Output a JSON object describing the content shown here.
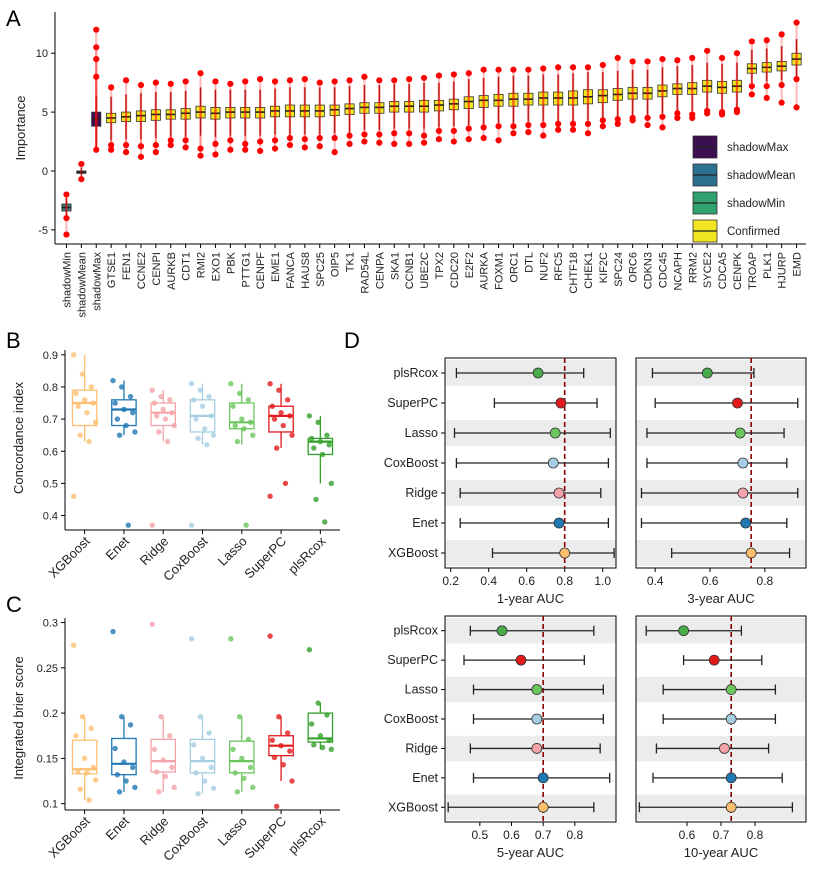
{
  "panels": {
    "A": {
      "letter": "A",
      "ylabel": "Importance",
      "yticks": [
        -5,
        0,
        5,
        10
      ],
      "ylim": [
        -6.2,
        13.5
      ],
      "legend": [
        {
          "label": "shadowMax",
          "color": "#3b0f52"
        },
        {
          "label": "shadowMean",
          "color": "#2c6f8e"
        },
        {
          "label": "shadowMin",
          "color": "#31a26f"
        },
        {
          "label": "Confirmed",
          "color": "#f2e521"
        }
      ]
    },
    "B": {
      "letter": "B",
      "ylabel": "Concordance index",
      "yticks": [
        0.4,
        0.5,
        0.6,
        0.7,
        0.8,
        0.9
      ],
      "ylim": [
        0.355,
        0.915
      ]
    },
    "C": {
      "letter": "C",
      "ylabel": "Integrated brier score",
      "yticks": [
        0.1,
        0.15,
        0.2,
        0.25,
        0.3
      ],
      "ylim": [
        0.093,
        0.305
      ]
    },
    "D": {
      "letter": "D"
    }
  },
  "chart_data": [
    {
      "id": "A",
      "type": "box",
      "title": "",
      "xlabel": "",
      "ylabel": "Importance",
      "categories": [
        "shadowMin",
        "shadowMean",
        "shadowMax",
        "GTSE1",
        "FEN1",
        "CCNE2",
        "CENPI",
        "AURKB",
        "CDT1",
        "RMI2",
        "EXO1",
        "PBK",
        "PTTG1",
        "CENPF",
        "EME1",
        "FANCA",
        "HAUS8",
        "SPC25",
        "OIP5",
        "TK1",
        "RAD54L",
        "CENPA",
        "SKA1",
        "CCNB1",
        "UBE2C",
        "TPX2",
        "CDC20",
        "E2F2",
        "AURKA",
        "FOXM1",
        "ORC1",
        "DTL",
        "NUF2",
        "RFC5",
        "CHTF18",
        "CHEK1",
        "KIF2C",
        "SPC24",
        "ORC6",
        "CDKN3",
        "CDC45",
        "NCAPH",
        "RRM2",
        "SYCE2",
        "CDCA5",
        "CENPK",
        "TROAP",
        "PLK1",
        "HJURP",
        "EMD"
      ],
      "medians": [
        -3.1,
        -0.1,
        4.4,
        4.5,
        4.6,
        4.7,
        4.8,
        4.8,
        4.9,
        5.0,
        4.9,
        5.0,
        5.0,
        5.0,
        5.1,
        5.1,
        5.1,
        5.1,
        5.2,
        5.3,
        5.4,
        5.4,
        5.5,
        5.5,
        5.5,
        5.6,
        5.7,
        5.9,
        6.0,
        6.0,
        6.1,
        6.1,
        6.2,
        6.2,
        6.2,
        6.3,
        6.4,
        6.5,
        6.6,
        6.6,
        6.8,
        7.0,
        7.0,
        7.2,
        7.1,
        7.2,
        8.7,
        8.8,
        8.9,
        9.5
      ],
      "q1": [
        -3.4,
        -0.2,
        3.8,
        4.1,
        4.2,
        4.2,
        4.3,
        4.4,
        4.4,
        4.5,
        4.4,
        4.5,
        4.5,
        4.5,
        4.6,
        4.6,
        4.6,
        4.6,
        4.7,
        4.8,
        4.9,
        4.9,
        5.0,
        5.0,
        5.0,
        5.1,
        5.2,
        5.3,
        5.4,
        5.5,
        5.5,
        5.6,
        5.6,
        5.6,
        5.6,
        5.7,
        5.8,
        6.0,
        6.1,
        6.1,
        6.3,
        6.5,
        6.5,
        6.7,
        6.6,
        6.7,
        8.3,
        8.4,
        8.5,
        9.0
      ],
      "q3": [
        -2.8,
        0.0,
        5.0,
        4.9,
        5.0,
        5.1,
        5.2,
        5.2,
        5.3,
        5.5,
        5.4,
        5.4,
        5.4,
        5.4,
        5.5,
        5.6,
        5.6,
        5.6,
        5.6,
        5.7,
        5.8,
        5.8,
        5.9,
        5.9,
        6.0,
        6.0,
        6.1,
        6.3,
        6.4,
        6.5,
        6.6,
        6.6,
        6.7,
        6.7,
        6.8,
        6.9,
        6.9,
        7.0,
        7.1,
        7.1,
        7.3,
        7.4,
        7.5,
        7.7,
        7.6,
        7.7,
        9.1,
        9.2,
        9.3,
        10.0
      ],
      "wmin": [
        -3.9,
        -0.4,
        2.0,
        2.6,
        2.7,
        2.7,
        2.8,
        2.9,
        2.9,
        3.0,
        2.9,
        3.0,
        3.0,
        3.0,
        3.1,
        3.1,
        3.1,
        3.1,
        3.2,
        3.3,
        3.5,
        3.5,
        3.6,
        3.6,
        3.6,
        3.7,
        3.8,
        3.9,
        4.0,
        4.1,
        4.1,
        4.2,
        4.2,
        4.2,
        4.2,
        4.3,
        4.4,
        4.6,
        4.7,
        4.7,
        4.9,
        5.1,
        5.1,
        5.3,
        5.2,
        5.3,
        7.5,
        7.6,
        7.7,
        8.0
      ],
      "wmax": [
        -2.3,
        0.3,
        6.4,
        6.3,
        6.5,
        6.6,
        6.7,
        6.7,
        6.8,
        7.1,
        6.9,
        6.9,
        6.9,
        6.9,
        7.0,
        7.1,
        7.1,
        7.1,
        7.1,
        7.2,
        7.3,
        7.3,
        7.4,
        7.4,
        7.5,
        7.5,
        7.6,
        7.8,
        7.9,
        8.0,
        8.1,
        8.1,
        8.2,
        8.2,
        8.3,
        8.4,
        8.4,
        8.5,
        8.6,
        8.6,
        8.8,
        8.9,
        9.0,
        9.2,
        9.1,
        9.2,
        10.3,
        10.4,
        10.6,
        11.2
      ],
      "out_lo": [
        [
          -4.0,
          -5.4
        ],
        [
          -0.7
        ],
        [
          1.8
        ],
        [
          1.8,
          2.2
        ],
        [
          1.6,
          2.2
        ],
        [
          1.2,
          2.1
        ],
        [
          1.6,
          2.2
        ],
        [
          2.2,
          2.6
        ],
        [
          2.0,
          2.6
        ],
        [
          1.3,
          1.9
        ],
        [
          1.4,
          2.3
        ],
        [
          1.8,
          2.6
        ],
        [
          1.8,
          2.3
        ],
        [
          1.7,
          2.5
        ],
        [
          1.9,
          2.6
        ],
        [
          2.2,
          2.8
        ],
        [
          2.0,
          2.7
        ],
        [
          2.1,
          2.8
        ],
        [
          1.6,
          2.8
        ],
        [
          2.3,
          3.0
        ],
        [
          2.5,
          3.1
        ],
        [
          2.4,
          3.1
        ],
        [
          2.3,
          3.2
        ],
        [
          2.3,
          3.2
        ],
        [
          2.4,
          3.0
        ],
        [
          2.7,
          3.4
        ],
        [
          2.5,
          3.4
        ],
        [
          2.7,
          3.6
        ],
        [
          2.8,
          3.7
        ],
        [
          2.6,
          3.8
        ],
        [
          3.2,
          3.8
        ],
        [
          3.3,
          3.9
        ],
        [
          3.0,
          3.9
        ],
        [
          3.5,
          4.0
        ],
        [
          3.5,
          4.0
        ],
        [
          3.2,
          4.0
        ],
        [
          3.8,
          4.3
        ],
        [
          4.0,
          4.4
        ],
        [
          4.3,
          4.5
        ],
        [
          3.9,
          4.5
        ],
        [
          3.7,
          4.6
        ],
        [
          4.5,
          4.9
        ],
        [
          4.5,
          4.8
        ],
        [
          4.9,
          5.1
        ],
        [
          4.8,
          5.0
        ],
        [
          5.0,
          5.2
        ],
        [
          6.5,
          7.2
        ],
        [
          6.2,
          7.2
        ],
        [
          5.8,
          7.3
        ],
        [
          5.4,
          7.8
        ]
      ],
      "out_hi": [
        [
          -2.0
        ],
        [
          0.6
        ],
        [
          12.0,
          10.5,
          9.5,
          8.0
        ],
        [
          7.1
        ],
        [
          7.7
        ],
        [
          7.3
        ],
        [
          7.5
        ],
        [
          7.4
        ],
        [
          7.6
        ],
        [
          8.3
        ],
        [
          7.6
        ],
        [
          7.4
        ],
        [
          7.6
        ],
        [
          7.8
        ],
        [
          7.6
        ],
        [
          7.7
        ],
        [
          7.8
        ],
        [
          7.5
        ],
        [
          7.6
        ],
        [
          7.7
        ],
        [
          8.0
        ],
        [
          7.7
        ],
        [
          7.7
        ],
        [
          7.8
        ],
        [
          7.9
        ],
        [
          8.1
        ],
        [
          8.2
        ],
        [
          8.3
        ],
        [
          8.6
        ],
        [
          8.6
        ],
        [
          8.6
        ],
        [
          8.6
        ],
        [
          8.7
        ],
        [
          8.8
        ],
        [
          8.8
        ],
        [
          8.8
        ],
        [
          9.0
        ],
        [
          9.6
        ],
        [
          9.3
        ],
        [
          9.3
        ],
        [
          9.5
        ],
        [
          9.4
        ],
        [
          9.6
        ],
        [
          10.2
        ],
        [
          9.6
        ],
        [
          10.0
        ],
        [
          11.0
        ],
        [
          11.1
        ],
        [
          11.6
        ],
        [
          12.6
        ]
      ]
    },
    {
      "id": "B",
      "type": "box",
      "title": "",
      "ylabel": "Concordance index",
      "categories": [
        "XGBoost",
        "Enet",
        "Ridge",
        "CoxBoost",
        "Lasso",
        "SuperPC",
        "plsRcox"
      ],
      "colors": [
        "#fdbf6f",
        "#1f78b4",
        "#f4a4a8",
        "#a6cee3",
        "#6cc65e",
        "#e31a1c",
        "#33a02c"
      ],
      "medians": [
        0.75,
        0.73,
        0.72,
        0.71,
        0.69,
        0.71,
        0.63
      ],
      "q1": [
        0.68,
        0.68,
        0.68,
        0.66,
        0.67,
        0.66,
        0.59
      ],
      "q3": [
        0.79,
        0.76,
        0.75,
        0.76,
        0.75,
        0.74,
        0.64
      ],
      "wmin": [
        0.63,
        0.65,
        0.63,
        0.62,
        0.62,
        0.61,
        0.5
      ],
      "wmax": [
        0.9,
        0.82,
        0.79,
        0.81,
        0.81,
        0.81,
        0.71
      ],
      "points": [
        [
          0.9,
          0.84,
          0.8,
          0.78,
          0.76,
          0.75,
          0.74,
          0.72,
          0.69,
          0.65,
          0.63,
          0.46
        ],
        [
          0.82,
          0.8,
          0.77,
          0.75,
          0.73,
          0.72,
          0.7,
          0.68,
          0.66,
          0.65,
          0.37
        ],
        [
          0.79,
          0.77,
          0.76,
          0.75,
          0.73,
          0.72,
          0.71,
          0.7,
          0.68,
          0.66,
          0.63,
          0.37
        ],
        [
          0.81,
          0.79,
          0.77,
          0.76,
          0.74,
          0.71,
          0.7,
          0.67,
          0.65,
          0.64,
          0.62,
          0.37
        ],
        [
          0.81,
          0.78,
          0.76,
          0.74,
          0.7,
          0.69,
          0.68,
          0.67,
          0.65,
          0.63,
          0.37
        ],
        [
          0.81,
          0.79,
          0.76,
          0.74,
          0.72,
          0.71,
          0.7,
          0.68,
          0.65,
          0.61,
          0.5,
          0.46
        ],
        [
          0.71,
          0.69,
          0.65,
          0.64,
          0.63,
          0.62,
          0.61,
          0.59,
          0.5,
          0.45,
          0.38
        ]
      ]
    },
    {
      "id": "C",
      "type": "box",
      "title": "",
      "ylabel": "Integrated brier score",
      "categories": [
        "XGBoost",
        "Enet",
        "Ridge",
        "CoxBoost",
        "Lasso",
        "SuperPC",
        "plsRcox"
      ],
      "colors": [
        "#fdbf6f",
        "#1f78b4",
        "#f4a4a8",
        "#a6cee3",
        "#6cc65e",
        "#e31a1c",
        "#33a02c"
      ],
      "medians": [
        0.138,
        0.144,
        0.147,
        0.147,
        0.147,
        0.164,
        0.172
      ],
      "q1": [
        0.133,
        0.132,
        0.135,
        0.134,
        0.134,
        0.153,
        0.168
      ],
      "q3": [
        0.17,
        0.172,
        0.171,
        0.171,
        0.169,
        0.175,
        0.2
      ],
      "wmin": [
        0.104,
        0.113,
        0.113,
        0.111,
        0.113,
        0.125,
        0.16
      ],
      "wmax": [
        0.196,
        0.196,
        0.196,
        0.196,
        0.196,
        0.196,
        0.211
      ],
      "points": [
        [
          0.275,
          0.196,
          0.183,
          0.175,
          0.15,
          0.14,
          0.136,
          0.134,
          0.126,
          0.116,
          0.104
        ],
        [
          0.29,
          0.196,
          0.187,
          0.161,
          0.146,
          0.14,
          0.132,
          0.125,
          0.118,
          0.113
        ],
        [
          0.298,
          0.196,
          0.175,
          0.16,
          0.148,
          0.14,
          0.135,
          0.13,
          0.118,
          0.113
        ],
        [
          0.282,
          0.196,
          0.178,
          0.165,
          0.15,
          0.14,
          0.134,
          0.125,
          0.117,
          0.111
        ],
        [
          0.282,
          0.196,
          0.171,
          0.16,
          0.15,
          0.14,
          0.134,
          0.128,
          0.118,
          0.113
        ],
        [
          0.285,
          0.196,
          0.178,
          0.17,
          0.164,
          0.158,
          0.151,
          0.143,
          0.125,
          0.097
        ],
        [
          0.27,
          0.211,
          0.198,
          0.188,
          0.175,
          0.17,
          0.165,
          0.162,
          0.16
        ]
      ]
    },
    {
      "id": "D",
      "type": "forest",
      "models": [
        "plsRcox",
        "SuperPC",
        "Lasso",
        "CoxBoost",
        "Ridge",
        "Enet",
        "XGBoost"
      ],
      "colors": [
        "#4aab4a",
        "#e31a1c",
        "#6cc65e",
        "#a6cee3",
        "#f4a4a8",
        "#1f78b4",
        "#fdbf6f"
      ],
      "subplots": [
        {
          "xlabel": "1-year AUC",
          "xticks": [
            0.2,
            0.4,
            0.6,
            0.8,
            1.0
          ],
          "xticklabels": [
            "0.2",
            "0.4",
            "0.6",
            "0.8",
            "1.0"
          ],
          "xlim": [
            0.17,
            1.07
          ],
          "ref": 0.8,
          "est": [
            0.66,
            0.78,
            0.75,
            0.74,
            0.77,
            0.77,
            0.8
          ],
          "lo": [
            0.23,
            0.43,
            0.22,
            0.23,
            0.25,
            0.25,
            0.42
          ],
          "hi": [
            0.9,
            0.97,
            1.04,
            1.03,
            0.99,
            1.03,
            1.06
          ]
        },
        {
          "xlabel": "3-year AUC",
          "xticks": [
            0.4,
            0.6,
            0.8
          ],
          "xticklabels": [
            "0.4",
            "0.6",
            "0.8"
          ],
          "xlim": [
            0.33,
            0.95
          ],
          "ref": 0.75,
          "est": [
            0.59,
            0.7,
            0.71,
            0.72,
            0.72,
            0.73,
            0.75
          ],
          "lo": [
            0.39,
            0.4,
            0.37,
            0.37,
            0.35,
            0.35,
            0.46
          ],
          "hi": [
            0.76,
            0.92,
            0.87,
            0.88,
            0.92,
            0.88,
            0.89
          ]
        },
        {
          "xlabel": "5-year AUC",
          "xticks": [
            0.5,
            0.6,
            0.7,
            0.8
          ],
          "xticklabels": [
            "0.5",
            "0.6",
            "0.7",
            "0.8"
          ],
          "xlim": [
            0.39,
            0.93
          ],
          "ref": 0.7,
          "est": [
            0.57,
            0.63,
            0.68,
            0.68,
            0.68,
            0.7,
            0.7
          ],
          "lo": [
            0.47,
            0.45,
            0.48,
            0.48,
            0.47,
            0.48,
            0.4
          ],
          "hi": [
            0.86,
            0.83,
            0.89,
            0.89,
            0.88,
            0.91,
            0.86
          ]
        },
        {
          "xlabel": "10-year AUC",
          "xticks": [
            0.6,
            0.7,
            0.8
          ],
          "xticklabels": [
            "0.6",
            "0.7",
            "0.8"
          ],
          "xlim": [
            0.45,
            0.95
          ],
          "ref": 0.73,
          "est": [
            0.59,
            0.68,
            0.73,
            0.73,
            0.71,
            0.73,
            0.73
          ],
          "lo": [
            0.48,
            0.59,
            0.53,
            0.53,
            0.51,
            0.5,
            0.46
          ],
          "hi": [
            0.76,
            0.82,
            0.86,
            0.86,
            0.84,
            0.88,
            0.91
          ]
        }
      ]
    }
  ]
}
